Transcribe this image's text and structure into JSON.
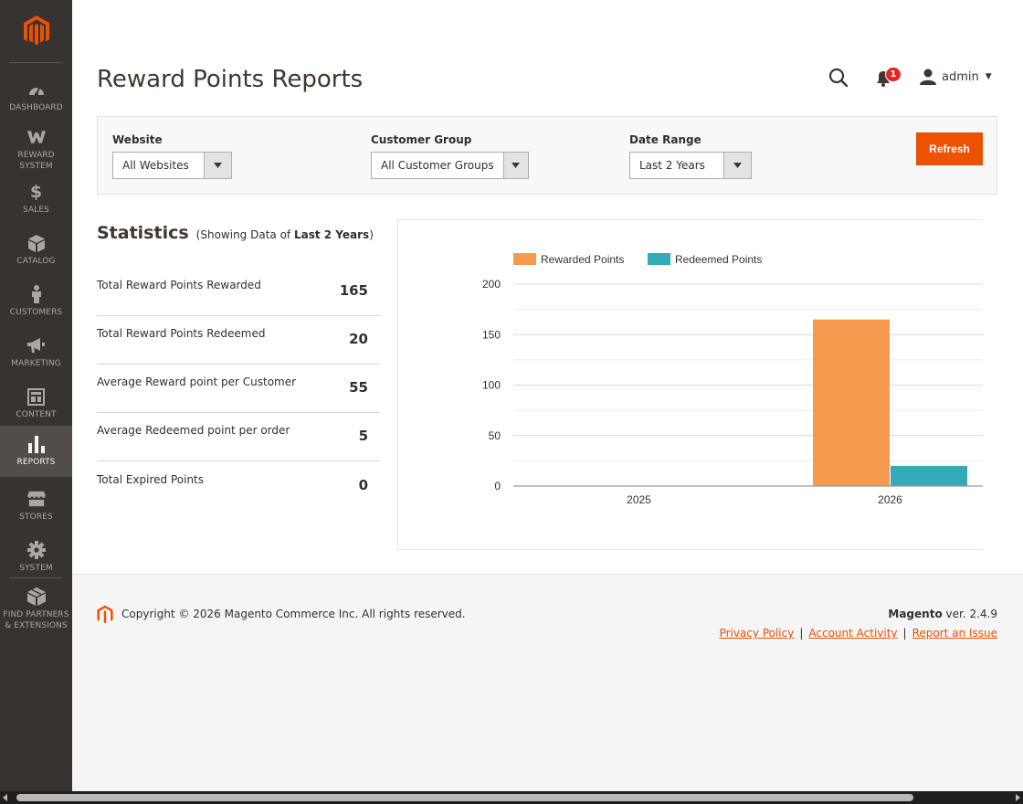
{
  "sidebar": {
    "items": [
      {
        "label": "DASHBOARD",
        "icon": "dashboard-icon"
      },
      {
        "label": "REWARD SYSTEM",
        "icon": "reward-w-icon"
      },
      {
        "label": "SALES",
        "icon": "dollar-icon"
      },
      {
        "label": "CATALOG",
        "icon": "cube-icon"
      },
      {
        "label": "CUSTOMERS",
        "icon": "person-icon"
      },
      {
        "label": "MARKETING",
        "icon": "megaphone-icon"
      },
      {
        "label": "CONTENT",
        "icon": "layout-icon"
      },
      {
        "label": "REPORTS",
        "icon": "bar-chart-icon"
      },
      {
        "label": "STORES",
        "icon": "storefront-icon"
      },
      {
        "label": "SYSTEM",
        "icon": "gear-icon"
      },
      {
        "label": "FIND PARTNERS & EXTENSIONS",
        "icon": "box-icon"
      }
    ],
    "active": "REPORTS"
  },
  "header": {
    "title": "Reward Points Reports",
    "notifications_count": "1",
    "user": "admin"
  },
  "filters": {
    "website": {
      "label": "Website",
      "value": "All Websites"
    },
    "customer_group": {
      "label": "Customer Group",
      "value": "All Customer Groups"
    },
    "date_range": {
      "label": "Date Range",
      "value": "Last 2 Years"
    },
    "refresh_label": "Refresh"
  },
  "statistics": {
    "title": "Statistics",
    "subtitle_prefix": "(Showing Data of",
    "subtitle_range": "Last 2 Years",
    "subtitle_suffix": ")",
    "rows": [
      {
        "label": "Total Reward Points Rewarded",
        "value": "165"
      },
      {
        "label": "Total Reward Points Redeemed",
        "value": "20"
      },
      {
        "label": "Average Reward point per Customer",
        "value": "55"
      },
      {
        "label": "Average Redeemed point per order",
        "value": "5"
      },
      {
        "label": "Total Expired Points",
        "value": "0"
      }
    ]
  },
  "chart_data": {
    "type": "bar",
    "categories": [
      "2025",
      "2026"
    ],
    "series": [
      {
        "name": "Rewarded Points",
        "values": [
          0,
          165
        ],
        "color": "#f59a4f"
      },
      {
        "name": "Redeemed Points",
        "values": [
          0,
          20
        ],
        "color": "#34aab9"
      }
    ],
    "ylim": [
      0,
      200
    ],
    "yticks": [
      0,
      50,
      100,
      150,
      200
    ],
    "grid": true,
    "legend": "top"
  },
  "footer": {
    "copyright": "Copyright © 2026 Magento Commerce Inc. All rights reserved.",
    "brand": "Magento",
    "version": "ver. 2.4.9",
    "links": [
      "Privacy Policy",
      "Account Activity",
      "Report an Issue"
    ]
  },
  "colors": {
    "accent": "#eb5202",
    "sidebar_bg": "#373330",
    "sidebar_active": "#524d49"
  }
}
